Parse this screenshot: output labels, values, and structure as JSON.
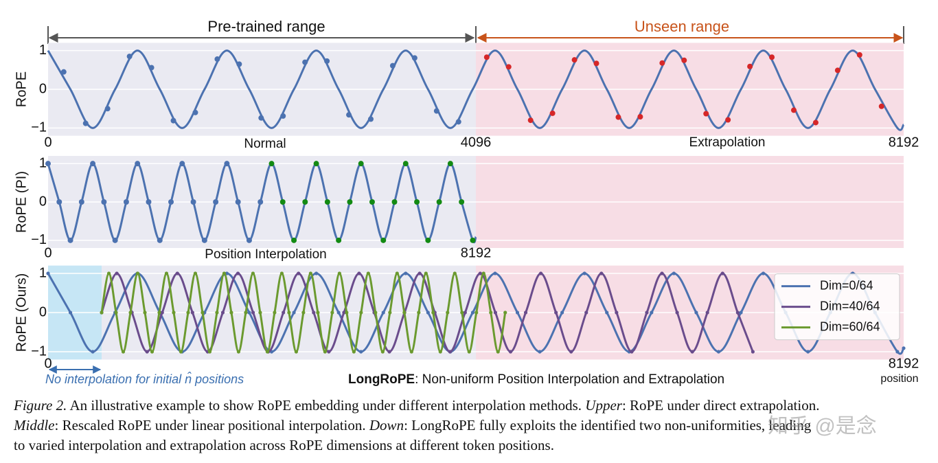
{
  "header": {
    "pretrained": "Pre-trained range",
    "unseen": "Unseen range"
  },
  "chart_data": [
    {
      "type": "line",
      "ylabel": "RoPE",
      "annotations": [
        "Normal",
        "Extrapolation"
      ],
      "xlim": [
        0,
        8192
      ],
      "xticks": [
        0,
        4096,
        8192
      ],
      "ylim": [
        -1.2,
        1.2
      ],
      "yticks": [
        1,
        0,
        {
          "value": -1,
          "label": "−1"
        }
      ],
      "grid": true,
      "regions": [
        {
          "x": [
            0,
            4096
          ],
          "color": "#eaeaf2"
        },
        {
          "x": [
            4096,
            8192
          ],
          "color": "#f7dde5"
        }
      ],
      "series": [
        {
          "color": "#4c72b0",
          "mode": "lines",
          "x": [
            0,
            214,
            428,
            642,
            856,
            1070,
            1284,
            1498,
            1712,
            1926,
            2140,
            2354,
            2568,
            2782,
            2996,
            3210,
            3424,
            3638,
            3852,
            4066,
            4280,
            4494,
            4708,
            4922,
            5136,
            5350,
            5564,
            5778,
            5992,
            6206,
            6420,
            6634,
            6848,
            7062,
            7276,
            7490,
            7704,
            7918,
            8132,
            8192
          ],
          "values": [
            1,
            0,
            -1,
            0,
            1,
            0,
            -1,
            0,
            1,
            0,
            -1,
            0,
            1,
            0,
            -1,
            0,
            1,
            0,
            -1,
            0,
            1,
            0,
            -1,
            0,
            1,
            0,
            -1,
            0,
            1,
            0,
            -1,
            0,
            1,
            0,
            -1,
            0,
            1,
            0,
            -1,
            -0.91
          ]
        },
        {
          "color": "#4c72b0",
          "mode": "markers",
          "x": [
            150,
            360,
            570,
            780,
            990,
            1200,
            1410,
            1620,
            1830,
            2040,
            2250,
            2460,
            2670,
            2880,
            3090,
            3300,
            3510,
            3720,
            3930
          ],
          "values": [
            0.45,
            -0.88,
            -0.5,
            0.85,
            0.56,
            -0.81,
            -0.6,
            0.78,
            0.65,
            -0.74,
            -0.69,
            0.7,
            0.73,
            -0.66,
            -0.77,
            0.61,
            0.81,
            -0.56,
            -0.84
          ]
        },
        {
          "color": "#d62728",
          "mode": "markers",
          "x": [
            4200,
            4410,
            4620,
            4830,
            5040,
            5250,
            5460,
            5670,
            5880,
            6090,
            6300,
            6510,
            6720,
            6930,
            7140,
            7350,
            7560,
            7770,
            7980
          ],
          "values": [
            0.83,
            0.58,
            -0.8,
            -0.62,
            0.76,
            0.67,
            -0.72,
            -0.71,
            0.68,
            0.75,
            -0.63,
            -0.79,
            0.59,
            0.83,
            -0.54,
            -0.86,
            0.49,
            0.89,
            -0.44
          ]
        }
      ]
    },
    {
      "type": "line",
      "ylabel": "RoPE (PI)",
      "annotations": [
        "Position Interpolation"
      ],
      "xlim": [
        0,
        16384
      ],
      "xticks": [
        0,
        8192
      ],
      "ylim": [
        -1.2,
        1.2
      ],
      "yticks": [
        1,
        0,
        {
          "value": -1,
          "label": "−1"
        }
      ],
      "grid": true,
      "regions": [
        {
          "x": [
            0,
            8192
          ],
          "color": "#eaeaf2"
        },
        {
          "x": [
            8192,
            16384
          ],
          "color": "#f7dde5"
        }
      ],
      "series": [
        {
          "color": "#4c72b0",
          "mode": "lines",
          "x": [
            0,
            214,
            428,
            642,
            856,
            1070,
            1284,
            1498,
            1712,
            1926,
            2140,
            2354,
            2568,
            2782,
            2996,
            3210,
            3424,
            3638,
            3852,
            4066,
            4280,
            4494,
            4708,
            4922,
            5136,
            5350,
            5564,
            5778,
            5992,
            6206,
            6420,
            6634,
            6848,
            7062,
            7276,
            7490,
            7704,
            7918,
            8132,
            8192
          ],
          "values": [
            1,
            0,
            -1,
            0,
            1,
            0,
            -1,
            0,
            1,
            0,
            -1,
            0,
            1,
            0,
            -1,
            0,
            1,
            0,
            -1,
            0,
            1,
            0,
            -1,
            0,
            1,
            0,
            -1,
            0,
            1,
            0,
            -1,
            0,
            1,
            0,
            -1,
            0,
            1,
            0,
            -1,
            -0.91
          ]
        },
        {
          "color": "#4c72b0",
          "mode": "markers",
          "x": [
            0,
            214,
            428,
            642,
            856,
            1070,
            1284,
            1498,
            1712,
            1926,
            2140,
            2354,
            2568,
            2782,
            2996,
            3210,
            3424,
            3638,
            3852,
            4066
          ],
          "values": [
            1,
            0,
            -1,
            0,
            1,
            0,
            -1,
            0,
            1,
            0,
            -1,
            0,
            1,
            0,
            -1,
            0,
            1,
            0,
            -1,
            0
          ]
        },
        {
          "color": "#138a13",
          "mode": "markers",
          "x": [
            4280,
            4494,
            4708,
            4922,
            5136,
            5350,
            5564,
            5778,
            5992,
            6206,
            6420,
            6634,
            6848,
            7062,
            7276,
            7490,
            7704,
            7918,
            8132
          ],
          "values": [
            1,
            0,
            -1,
            0,
            1,
            0,
            -1,
            0,
            1,
            0,
            -1,
            0,
            1,
            0,
            -1,
            0,
            1,
            0,
            -1
          ]
        }
      ]
    },
    {
      "type": "line",
      "ylabel": "RoPE (Ours)",
      "xlabel": "position",
      "annotations": [
        "No interpolation for initial n̂ positions"
      ],
      "title_bold": "LongRoPE",
      "title": ": Non-uniform Position Interpolation and Extrapolation",
      "xlim": [
        0,
        8192
      ],
      "xticks": [
        0,
        8192
      ],
      "ylim": [
        -1.2,
        1.2
      ],
      "yticks": [
        1,
        0,
        {
          "value": -1,
          "label": "−1"
        }
      ],
      "grid": true,
      "legend": "upper right",
      "regions": [
        {
          "x": [
            0,
            513
          ],
          "color": "#c6e6f5"
        },
        {
          "x": [
            513,
            4096
          ],
          "color": "#eaeaf2"
        },
        {
          "x": [
            4096,
            8192
          ],
          "color": "#f7dde5"
        }
      ],
      "series": [
        {
          "name": "Dim=0/64",
          "color": "#4c72b0",
          "mode": "lines+markers",
          "x": [
            0,
            214,
            428,
            642,
            856,
            1070,
            1284,
            1498,
            1712,
            1926,
            2140,
            2354,
            2568,
            2782,
            2996,
            3210,
            3424,
            3638,
            3852,
            4066,
            4280,
            4494,
            4708,
            4922,
            5136,
            5350,
            5564,
            5778,
            5992,
            6206,
            6420,
            6634,
            6848,
            7062,
            7276,
            7490,
            7704,
            7918,
            8132,
            8192
          ],
          "values": [
            1,
            0,
            -1,
            0,
            1,
            0,
            -1,
            0,
            1,
            0,
            -1,
            0,
            1,
            0,
            -1,
            0,
            1,
            0,
            -1,
            0,
            1,
            0,
            -1,
            0,
            1,
            0,
            -1,
            0,
            1,
            0,
            -1,
            0,
            1,
            0,
            -1,
            0,
            1,
            0,
            -1,
            -0.91
          ]
        },
        {
          "name": "Dim=40/64",
          "color": "#6a4c8c",
          "mode": "lines+markers",
          "x": [
            513,
            658,
            803,
            948,
            1093,
            1238,
            1383,
            1528,
            1673,
            1818,
            1963,
            2108,
            2253,
            2398,
            2543,
            2688,
            2833,
            2978,
            3123,
            3268,
            3413,
            3558,
            3703,
            3848,
            3993,
            4138,
            4283,
            4428,
            4573,
            4718,
            4863,
            5008,
            5153,
            5298,
            5443,
            5588,
            5733,
            5878,
            6023,
            6168,
            6313,
            6458,
            6603,
            6748
          ],
          "values": [
            0,
            1,
            0,
            -1,
            0,
            1,
            0,
            -1,
            0,
            1,
            0,
            -1,
            0,
            1,
            0,
            -1,
            0,
            1,
            0,
            -1,
            0,
            1,
            0,
            -1,
            0,
            1,
            0,
            -1,
            0,
            1,
            0,
            -1,
            0,
            1,
            0,
            -1,
            0,
            1,
            0,
            -1,
            0,
            1,
            0,
            -1
          ]
        },
        {
          "name": "Dim=60/64",
          "color": "#6b9a2f",
          "mode": "lines+markers",
          "x": [
            513,
            582,
            651,
            720,
            789,
            858,
            927,
            996,
            1065,
            1134,
            1203,
            1272,
            1341,
            1410,
            1479,
            1548,
            1617,
            1686,
            1755,
            1824,
            1893,
            1962,
            2031,
            2100,
            2169,
            2238,
            2307,
            2376,
            2445,
            2514,
            2583,
            2652,
            2721,
            2790,
            2859,
            2928,
            2997,
            3066,
            3135,
            3204,
            3273,
            3342,
            3411,
            3480,
            3549,
            3618,
            3687,
            3756,
            3825,
            3894,
            3963,
            4032,
            4101,
            4170,
            4239,
            4308,
            4377
          ],
          "values": [
            0,
            1,
            0,
            -1,
            0,
            1,
            0,
            -1,
            0,
            1,
            0,
            -1,
            0,
            1,
            0,
            -1,
            0,
            1,
            0,
            -1,
            0,
            1,
            0,
            -1,
            0,
            1,
            0,
            -1,
            0,
            1,
            0,
            -1,
            0,
            1,
            0,
            -1,
            0,
            1,
            0,
            -1,
            0,
            1,
            0,
            -1,
            0,
            1,
            0,
            -1,
            0,
            1,
            0,
            -1,
            0,
            1,
            0,
            -1,
            0
          ]
        }
      ]
    }
  ],
  "caption": [
    [
      {
        "text": "Figure 2.",
        "italic": true
      },
      {
        "text": " An illustrative example to show RoPE embedding under different interpolation methods. ",
        "italic": false
      },
      {
        "text": "Upper",
        "italic": true
      },
      {
        "text": ": RoPE under direct extrapolation.",
        "italic": false
      }
    ],
    [
      {
        "text": "Middle",
        "italic": true
      },
      {
        "text": ": Rescaled RoPE under linear positional interpolation. ",
        "italic": false
      },
      {
        "text": "Down",
        "italic": true
      },
      {
        "text": ": LongRoPE fully exploits the identified two non-uniformities, leading",
        "italic": false
      }
    ],
    [
      {
        "text": "to varied interpolation and extrapolation across RoPE dimensions at different token positions.",
        "italic": false
      }
    ]
  ],
  "watermark": "知乎 @是念"
}
